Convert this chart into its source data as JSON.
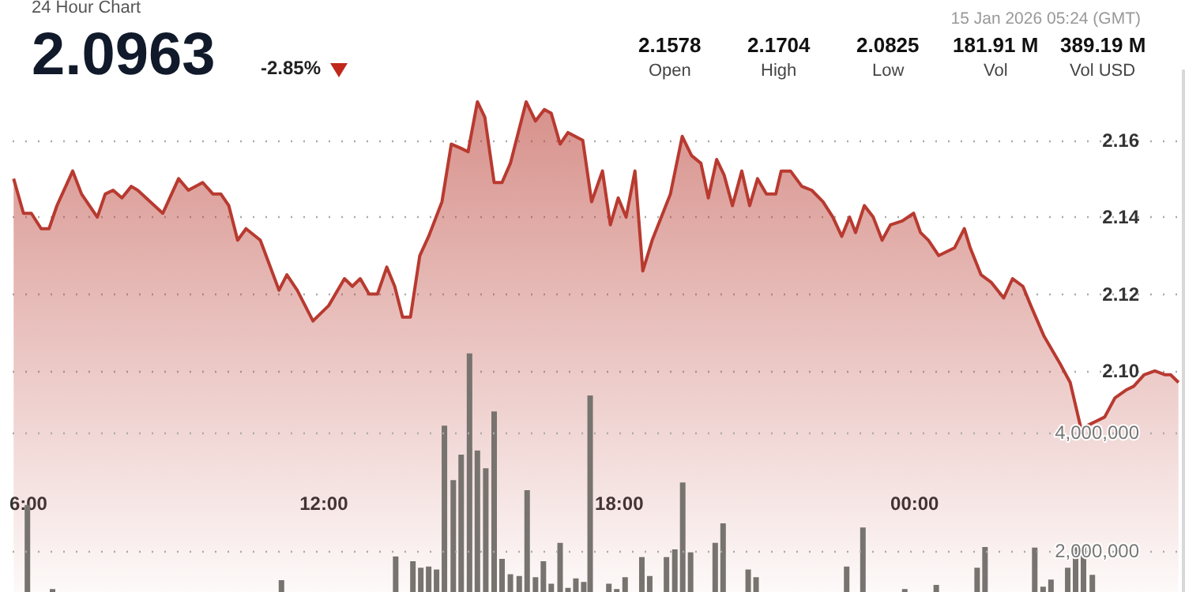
{
  "chart_data": {
    "type": "area",
    "title": "24 Hour Chart",
    "annotations": [
      "2.0963",
      "-2.85%",
      "15 Jan 2026 05:24 (GMT)",
      "2.1578",
      "Open",
      "2.1704",
      "High",
      "2.0825",
      "Low",
      "181.91 M",
      "Vol",
      "389.19 M",
      "Vol USD"
    ],
    "xlim": [
      5.68,
      29.46
    ],
    "xticks": [
      {
        "value": 6,
        "label": "6:00"
      },
      {
        "value": 12,
        "label": "12:00"
      },
      {
        "value": 18,
        "label": "18:00"
      },
      {
        "value": 24,
        "label": "00:00"
      }
    ],
    "ylim": [
      2.0425,
      2.178
    ],
    "yticks": [
      {
        "value": 2.1,
        "label": "2.10"
      },
      {
        "value": 2.12,
        "label": "2.12"
      },
      {
        "value": 2.14,
        "label": "2.14"
      },
      {
        "value": 2.16,
        "label": "2.16"
      }
    ],
    "y2lim": [
      1300000,
      10100000
    ],
    "y2ticks": [
      {
        "value": 2000000,
        "label": "2,000,000"
      },
      {
        "value": 4000000,
        "label": "4,000,000"
      }
    ],
    "grid": "y",
    "marker": "none",
    "series": [
      {
        "color": "#b83a30",
        "x": [
          5.7,
          5.9,
          6.06,
          6.26,
          6.42,
          6.58,
          6.9,
          7.08,
          7.4,
          7.56,
          7.72,
          7.9,
          8.09,
          8.22,
          8.73,
          9.05,
          9.25,
          9.54,
          9.75,
          9.91,
          10.07,
          10.25,
          10.42,
          10.71,
          11.09,
          11.25,
          11.46,
          11.78,
          12.1,
          12.42,
          12.58,
          12.74,
          12.92,
          13.09,
          13.28,
          13.44,
          13.6,
          13.76,
          13.95,
          14.13,
          14.4,
          14.59,
          14.77,
          14.93,
          15.12,
          15.27,
          15.46,
          15.62,
          15.79,
          16.11,
          16.3,
          16.48,
          16.62,
          16.8,
          16.96,
          17.26,
          17.44,
          17.66,
          17.82,
          17.98,
          18.14,
          18.32,
          18.48,
          18.67,
          19.04,
          19.28,
          19.47,
          19.66,
          19.81,
          19.98,
          20.13,
          20.3,
          20.49,
          20.65,
          20.81,
          20.99,
          21.18,
          21.29,
          21.48,
          21.71,
          21.91,
          22.14,
          22.34,
          22.52,
          22.68,
          22.8,
          22.98,
          23.16,
          23.34,
          23.51,
          23.75,
          23.98,
          24.12,
          24.28,
          24.49,
          24.81,
          25.01,
          25.13,
          25.35,
          25.56,
          25.81,
          25.99,
          26.2,
          26.36,
          26.63,
          26.95,
          27.16,
          27.38,
          27.54,
          27.7,
          27.86,
          28.07,
          28.29,
          28.45,
          28.66,
          28.88,
          29.09,
          29.2,
          29.36
        ],
        "values": [
          2.15,
          2.141,
          2.141,
          2.137,
          2.137,
          2.143,
          2.152,
          2.146,
          2.14,
          2.146,
          2.147,
          2.145,
          2.148,
          2.147,
          2.141,
          2.15,
          2.147,
          2.149,
          2.146,
          2.146,
          2.143,
          2.134,
          2.137,
          2.134,
          2.121,
          2.125,
          2.121,
          2.113,
          2.117,
          2.124,
          2.122,
          2.124,
          2.12,
          2.12,
          2.127,
          2.122,
          2.114,
          2.114,
          2.13,
          2.135,
          2.144,
          2.159,
          2.158,
          2.157,
          2.17,
          2.166,
          2.149,
          2.149,
          2.154,
          2.17,
          2.165,
          2.168,
          2.167,
          2.159,
          2.162,
          2.16,
          2.144,
          2.152,
          2.138,
          2.145,
          2.14,
          2.152,
          2.126,
          2.134,
          2.146,
          2.161,
          2.156,
          2.154,
          2.145,
          2.155,
          2.151,
          2.143,
          2.152,
          2.143,
          2.15,
          2.146,
          2.146,
          2.152,
          2.152,
          2.148,
          2.147,
          2.144,
          2.14,
          2.135,
          2.14,
          2.136,
          2.143,
          2.14,
          2.134,
          2.138,
          2.139,
          2.141,
          2.136,
          2.134,
          2.13,
          2.132,
          2.137,
          2.132,
          2.125,
          2.123,
          2.119,
          2.124,
          2.122,
          2.117,
          2.109,
          2.102,
          2.097,
          2.085,
          2.086,
          2.087,
          2.088,
          2.093,
          2.095,
          2.096,
          2.099,
          2.1,
          2.099,
          2.099,
          2.097
        ]
      },
      {
        "type": "bar",
        "axis": "y2",
        "color": "#77736e",
        "x": [
          5.98,
          6.49,
          11.14,
          13.46,
          13.81,
          13.97,
          14.13,
          14.29,
          14.45,
          14.63,
          14.79,
          14.96,
          15.12,
          15.29,
          15.46,
          15.62,
          15.79,
          15.97,
          16.13,
          16.3,
          16.46,
          16.62,
          16.8,
          16.96,
          17.12,
          17.28,
          17.41,
          17.79,
          17.95,
          18.12,
          18.46,
          18.62,
          18.96,
          19.13,
          19.29,
          19.45,
          19.95,
          20.11,
          20.62,
          20.78,
          22.62,
          22.95,
          23.8,
          24.44,
          25.27,
          25.43,
          26.44,
          26.61,
          26.77,
          27.11,
          27.27,
          27.43,
          27.61
        ],
        "values": [
          2770000,
          1350000,
          1500000,
          1900000,
          1820000,
          1710000,
          1730000,
          1680000,
          4110000,
          3190000,
          3620000,
          5330000,
          3690000,
          3390000,
          4350000,
          1860000,
          1600000,
          1570000,
          3020000,
          1550000,
          1820000,
          1440000,
          2130000,
          1370000,
          1530000,
          1470000,
          4620000,
          1440000,
          1350000,
          1550000,
          1890000,
          1570000,
          1890000,
          2020000,
          3150000,
          1970000,
          2130000,
          2460000,
          1680000,
          1550000,
          1730000,
          2390000,
          1350000,
          1420000,
          1710000,
          2060000,
          2050000,
          1390000,
          1510000,
          1710000,
          2110000,
          2060000,
          1590000
        ]
      }
    ]
  }
}
